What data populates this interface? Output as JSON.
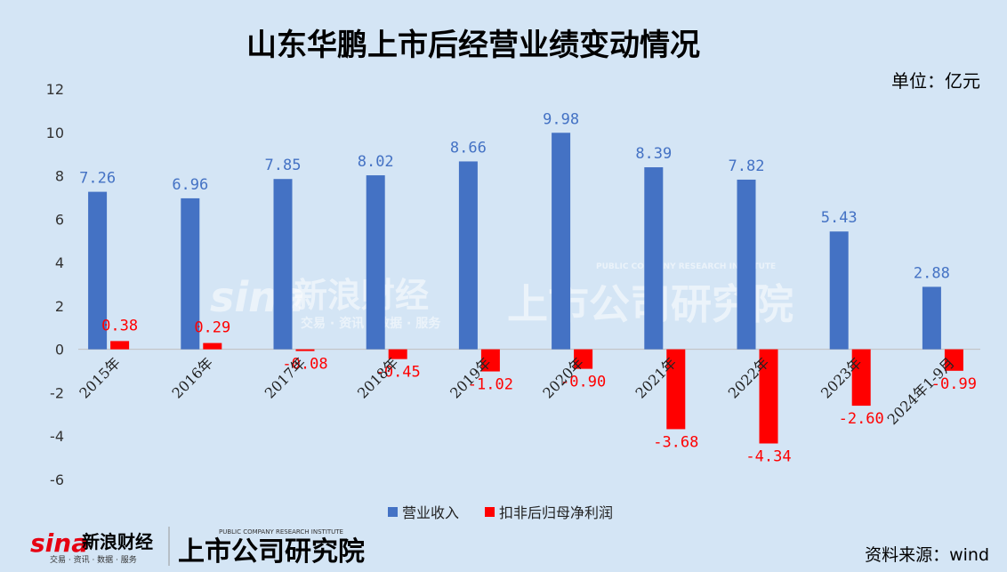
{
  "chart_data": {
    "type": "bar",
    "title": "山东华鹏上市后经营业绩变动情况",
    "unit_label": "单位：亿元",
    "categories": [
      "2015年",
      "2016年",
      "2017年",
      "2018年",
      "2019年",
      "2020年",
      "2021年",
      "2022年",
      "2023年",
      "2024年1-9月"
    ],
    "series": [
      {
        "name": "营业收入",
        "color": "#4472c4",
        "values": [
          7.26,
          6.96,
          7.85,
          8.02,
          8.66,
          9.98,
          8.39,
          7.82,
          5.43,
          2.88
        ],
        "labels": [
          "7.26",
          "6.96",
          "7.85",
          "8.02",
          "8.66",
          "9.98",
          "8.39",
          "7.82",
          "5.43",
          "2.88"
        ]
      },
      {
        "name": "扣非后归母净利润",
        "color": "#ff0000",
        "values": [
          0.38,
          0.29,
          -0.08,
          -0.45,
          -1.02,
          -0.9,
          -3.68,
          -4.34,
          -2.6,
          -0.99
        ],
        "labels": [
          "0.38",
          "0.29",
          "-0.08",
          "-0.45",
          "-1.02",
          "-0.90",
          "-3.68",
          "-4.34",
          "-2.60",
          "-0.99"
        ]
      }
    ],
    "ylim": [
      -6,
      12
    ],
    "yticks": [
      "12",
      "10",
      "8",
      "6",
      "4",
      "2",
      "0",
      "-2",
      "-4",
      "-6"
    ],
    "grid": false,
    "legend_position": "bottom"
  },
  "source_text": "资料来源：wind",
  "watermark": {
    "sina_logo": "sina",
    "sina_name": "新浪财经",
    "sina_sub": "交易 · 资讯 · 数据 · 服务",
    "research_name": "上市公司研究院",
    "research_sub": "PUBLIC COMPANY RESEARCH INSTITUTE"
  }
}
